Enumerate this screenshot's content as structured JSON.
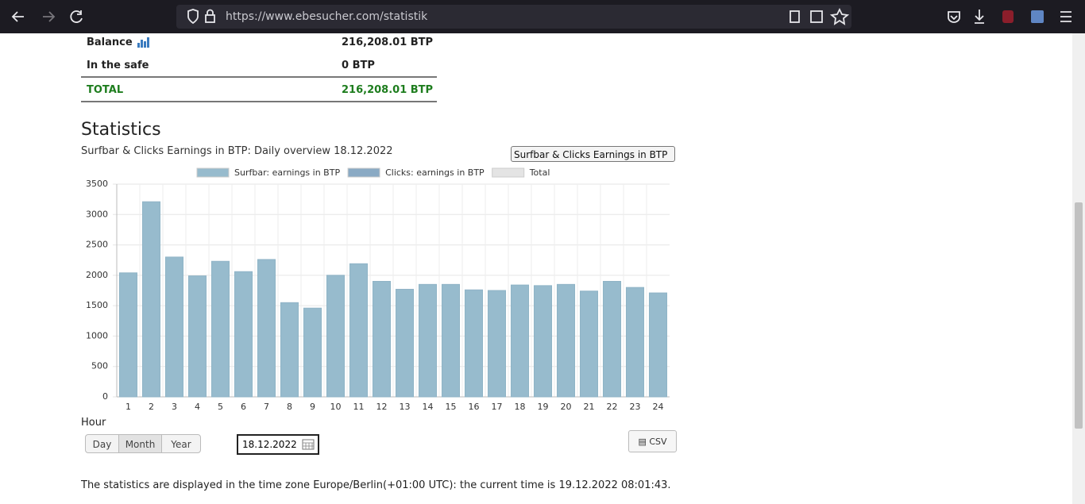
{
  "browser": {
    "url": "https://www.ebesucher.com/statistik"
  },
  "balance": {
    "rows": [
      [
        "Balance",
        "216,208.01 BTP"
      ],
      [
        "In the safe",
        "0 BTP"
      ],
      [
        "TOTAL",
        "216,208.01 BTP"
      ]
    ]
  },
  "statistics": {
    "heading": "Statistics",
    "select": "Surfbar & Clicks Earnings in BTP",
    "buttons": [
      "Day",
      "Month",
      "Year"
    ],
    "date": "18.12.2022",
    "csv": "CSV",
    "note": "The statistics are displayed in the time zone Europe/Berlin(+01:00 UTC): the current time is 19.12.2022 08:01:43."
  },
  "chart_data": {
    "type": "bar",
    "title": "Surfbar & Clicks Earnings in BTP: Daily overview 18.12.2022",
    "x_label": "Hour",
    "categories": [
      "1",
      "2",
      "3",
      "4",
      "5",
      "6",
      "7",
      "8",
      "9",
      "10",
      "11",
      "12",
      "13",
      "14",
      "15",
      "16",
      "17",
      "18",
      "19",
      "20",
      "21",
      "22",
      "23",
      "24"
    ],
    "series": [
      {
        "name": "Surfbar: earnings in BTP",
        "color": "#97bbcd",
        "values": [
          2040,
          3210,
          2300,
          1990,
          2230,
          2060,
          2260,
          1550,
          1460,
          2000,
          2190,
          1900,
          1770,
          1850,
          1850,
          1760,
          1750,
          1840,
          1830,
          1850,
          1740,
          1900,
          1800,
          1710
        ]
      },
      {
        "name": "Clicks: earnings in BTP",
        "color": "#8aaac4"
      },
      {
        "name": "Total",
        "color": "#e4e4e4"
      }
    ],
    "ylim": [
      0,
      3500
    ],
    "yticks": [
      0,
      500,
      1000,
      1500,
      2000,
      2500,
      3000,
      3500
    ],
    "grid": true
  }
}
